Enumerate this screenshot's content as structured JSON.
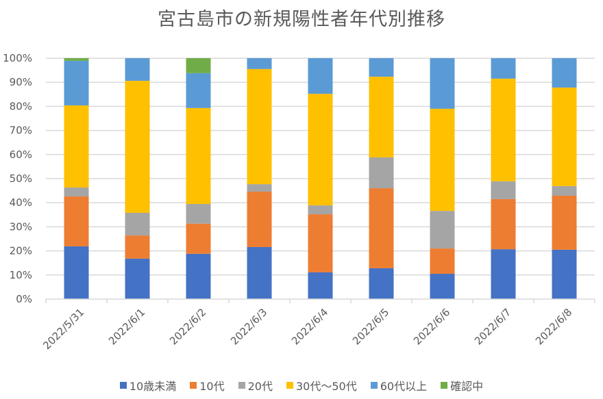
{
  "chart_data": {
    "type": "bar",
    "stacked": true,
    "percent": true,
    "title": "宮古島市の新規陽性者年代別推移",
    "xlabel": "",
    "ylabel": "",
    "ylim": [
      0,
      100
    ],
    "yticks": [
      "0%",
      "10%",
      "20%",
      "30%",
      "40%",
      "50%",
      "60%",
      "70%",
      "80%",
      "90%",
      "100%"
    ],
    "grid": true,
    "legend_position": "bottom",
    "categories": [
      "2022/5/31",
      "2022/6/1",
      "2022/6/2",
      "2022/6/3",
      "2022/6/4",
      "2022/6/5",
      "2022/6/6",
      "2022/6/7",
      "2022/6/8"
    ],
    "series": [
      {
        "name": "10歳未満",
        "color": "#4472C4",
        "values": [
          21.9,
          16.8,
          18.8,
          21.6,
          11.1,
          12.8,
          10.5,
          20.7,
          20.5
        ]
      },
      {
        "name": "10代",
        "color": "#ED7D31",
        "values": [
          20.7,
          9.6,
          12.5,
          23.0,
          24.1,
          33.2,
          10.5,
          20.8,
          22.4
        ]
      },
      {
        "name": "20代",
        "color": "#A5A5A5",
        "values": [
          3.7,
          9.4,
          8.2,
          3.1,
          3.7,
          12.8,
          15.6,
          7.4,
          4.0
        ]
      },
      {
        "name": "30代〜50代",
        "color": "#FFC000",
        "values": [
          34.1,
          54.8,
          39.8,
          47.8,
          46.3,
          33.5,
          42.4,
          42.6,
          40.9
        ]
      },
      {
        "name": "60代以上",
        "color": "#5B9BD5",
        "values": [
          18.5,
          9.4,
          14.5,
          4.5,
          14.8,
          7.7,
          21.0,
          8.5,
          12.2
        ]
      },
      {
        "name": "確認中",
        "color": "#70AD47",
        "values": [
          1.1,
          0,
          6.2,
          0,
          0,
          0,
          0,
          0,
          0
        ]
      }
    ]
  }
}
